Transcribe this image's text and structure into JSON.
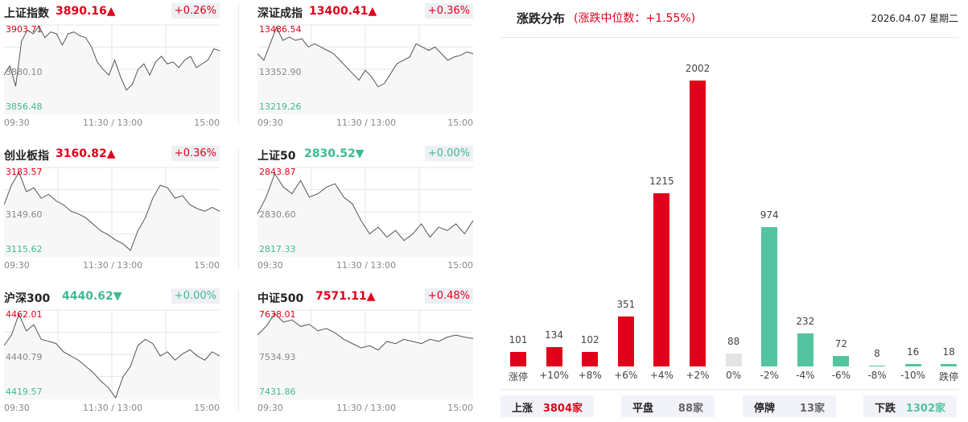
{
  "indices": [
    {
      "name": "上证指数",
      "value": "3890.16",
      "dir": "up",
      "change": "+0.26%",
      "high": "3903.71",
      "mid": "3880.10",
      "low": "3856.48",
      "series": [
        3877,
        3882,
        3871,
        3895,
        3901,
        3899,
        3903,
        3897,
        3900,
        3899,
        3893,
        3899,
        3900,
        3898,
        3897,
        3892,
        3884,
        3880,
        3877,
        3885,
        3876,
        3869,
        3872,
        3880,
        3883,
        3877,
        3884,
        3887,
        3883,
        3884,
        3881,
        3885,
        3887,
        3881,
        3883,
        3885,
        3891,
        3890
      ]
    },
    {
      "name": "深证成指",
      "value": "13400.41",
      "dir": "up",
      "change": "+0.36%",
      "high": "13486.54",
      "mid": "13352.90",
      "low": "13219.26",
      "series": [
        13400,
        13380,
        13430,
        13480,
        13440,
        13450,
        13440,
        13445,
        13420,
        13430,
        13420,
        13410,
        13400,
        13380,
        13360,
        13340,
        13320,
        13350,
        13330,
        13300,
        13310,
        13340,
        13370,
        13380,
        13390,
        13430,
        13420,
        13410,
        13420,
        13400,
        13380,
        13390,
        13395,
        13405,
        13400
      ]
    },
    {
      "name": "创业板指",
      "value": "3160.82",
      "dir": "up",
      "change": "+0.36%",
      "high": "3183.57",
      "mid": "3149.60",
      "low": "3115.62",
      "series": [
        3155,
        3170,
        3180,
        3165,
        3168,
        3160,
        3163,
        3158,
        3155,
        3150,
        3148,
        3145,
        3140,
        3135,
        3132,
        3128,
        3125,
        3120,
        3135,
        3145,
        3160,
        3170,
        3168,
        3160,
        3162,
        3155,
        3152,
        3150,
        3153,
        3150
      ]
    },
    {
      "name": "上证50",
      "value": "2830.52",
      "dir": "down",
      "change": "+0.00%",
      "high": "2843.87",
      "mid": "2830.60",
      "low": "2817.33",
      "series": [
        2830,
        2835,
        2842,
        2838,
        2836,
        2840,
        2835,
        2836,
        2838,
        2839,
        2835,
        2833,
        2828,
        2824,
        2826,
        2823,
        2825,
        2822,
        2824,
        2827,
        2823,
        2826,
        2825,
        2827,
        2824,
        2828
      ]
    },
    {
      "name": "沪深300",
      "value": "4440.62",
      "dir": "down",
      "change": "+0.00%",
      "high": "4462.01",
      "mid": "4440.79",
      "low": "4419.57",
      "series": [
        4445,
        4450,
        4460,
        4452,
        4455,
        4448,
        4447,
        4446,
        4442,
        4440,
        4438,
        4435,
        4432,
        4428,
        4425,
        4420,
        4430,
        4435,
        4445,
        4448,
        4446,
        4440,
        4442,
        4438,
        4441,
        4443,
        4440,
        4438,
        4442,
        4440
      ]
    },
    {
      "name": "中证500",
      "value": "7571.11",
      "dir": "up",
      "change": "+0.48%",
      "high": "7638.01",
      "mid": "7534.93",
      "low": "7431.86",
      "series": [
        7580,
        7600,
        7630,
        7610,
        7615,
        7600,
        7605,
        7590,
        7595,
        7585,
        7570,
        7560,
        7550,
        7555,
        7545,
        7565,
        7560,
        7570,
        7565,
        7560,
        7570,
        7565,
        7575,
        7580,
        7575,
        7572
      ]
    }
  ],
  "time_labels": {
    "start": "09:30",
    "mid": "11:30 / 13:00",
    "end": "15:00"
  },
  "distribution": {
    "title": "涨跌分布",
    "subtitle": "(涨跌中位数：+1.55%)",
    "date": "2026.04.07 星期二",
    "bars": [
      {
        "label": "涨停",
        "value": 101,
        "color": "#e0001b"
      },
      {
        "label": "+10%",
        "value": 134,
        "color": "#e0001b"
      },
      {
        "label": "+8%",
        "value": 102,
        "color": "#e0001b"
      },
      {
        "label": "+6%",
        "value": 351,
        "color": "#e0001b"
      },
      {
        "label": "+4%",
        "value": 1215,
        "color": "#e0001b"
      },
      {
        "label": "+2%",
        "value": 2002,
        "color": "#e0001b"
      },
      {
        "label": "0%",
        "value": 88,
        "color": "#e3e3e3"
      },
      {
        "label": "-2%",
        "value": 974,
        "color": "#52c4a0"
      },
      {
        "label": "-4%",
        "value": 232,
        "color": "#52c4a0"
      },
      {
        "label": "-6%",
        "value": 72,
        "color": "#52c4a0"
      },
      {
        "label": "-8%",
        "value": 8,
        "color": "#52c4a0"
      },
      {
        "label": "-10%",
        "value": 16,
        "color": "#52c4a0"
      },
      {
        "label": "跌停",
        "value": 18,
        "color": "#52c4a0"
      }
    ],
    "summary": [
      {
        "key": "上涨",
        "value": "3804家",
        "color": "#e0001b"
      },
      {
        "key": "平盘",
        "value": "88家",
        "color": "#666666"
      },
      {
        "key": "停牌",
        "value": "13家",
        "color": "#666666"
      },
      {
        "key": "下跌",
        "value": "1302家",
        "color": "#52c4a0"
      }
    ]
  },
  "colors": {
    "up": "#e0001b",
    "down": "#3fbb8f"
  }
}
